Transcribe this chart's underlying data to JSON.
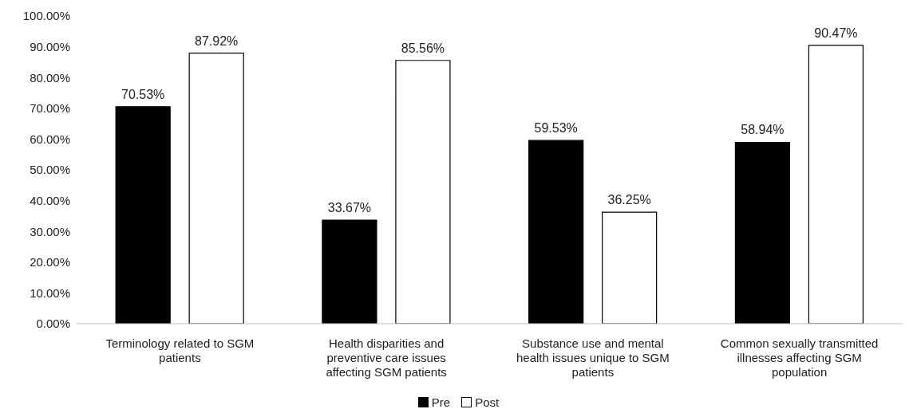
{
  "chart_data": {
    "type": "bar",
    "categories": [
      "Terminology related to SGM patients",
      "Health disparities and preventive care issues affecting SGM patients",
      "Substance use and mental health issues unique to SGM patients",
      "Common sexually transmitted illnesses affecting SGM population"
    ],
    "series": [
      {
        "name": "Pre",
        "color": "#000000",
        "values": [
          70.53,
          33.67,
          59.53,
          58.94
        ],
        "value_labels": [
          "70.53%",
          "33.67%",
          "59.53%",
          "58.94%"
        ]
      },
      {
        "name": "Post",
        "color": "#ffffff",
        "values": [
          87.92,
          85.56,
          36.25,
          90.47
        ],
        "value_labels": [
          "87.92%",
          "85.56%",
          "36.25%",
          "90.47%"
        ]
      }
    ],
    "ylim": [
      0,
      100
    ],
    "yticks": [
      {
        "value": 0,
        "label": "0.00%"
      },
      {
        "value": 10,
        "label": "10.00%"
      },
      {
        "value": 20,
        "label": "20.00%"
      },
      {
        "value": 30,
        "label": "30.00%"
      },
      {
        "value": 40,
        "label": "40.00%"
      },
      {
        "value": 50,
        "label": "50.00%"
      },
      {
        "value": 60,
        "label": "60.00%"
      },
      {
        "value": 70,
        "label": "70.00%"
      },
      {
        "value": 80,
        "label": "80.00%"
      },
      {
        "value": 90,
        "label": "90.00%"
      },
      {
        "value": 100,
        "label": "100.00%"
      }
    ],
    "grid": false,
    "legend": "bottom"
  }
}
